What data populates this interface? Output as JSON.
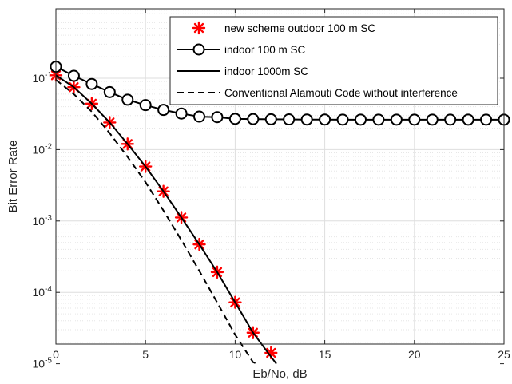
{
  "chart_data": {
    "type": "line",
    "title": "",
    "xlabel": "Eb/No, dB",
    "ylabel": "Bit Error Rate",
    "xlim": [
      0,
      25
    ],
    "ylim": [
      1e-05,
      0.5
    ],
    "yscale": "log",
    "grid": true,
    "minor_grid": true,
    "legend_position": "top-right",
    "x_ticks": [
      {
        "value": 0,
        "label": "0"
      },
      {
        "value": 5,
        "label": "5"
      },
      {
        "value": 10,
        "label": "10"
      },
      {
        "value": 15,
        "label": "15"
      },
      {
        "value": 20,
        "label": "20"
      },
      {
        "value": 25,
        "label": "25"
      }
    ],
    "y_ticks": [
      {
        "value": 0.1,
        "base": "10",
        "exp": "-1"
      },
      {
        "value": 0.01,
        "base": "10",
        "exp": "-2"
      },
      {
        "value": 0.001,
        "base": "10",
        "exp": "-3"
      },
      {
        "value": 0.0001,
        "base": "10",
        "exp": "-4"
      },
      {
        "value": 1e-05,
        "base": "10",
        "exp": "-5"
      }
    ],
    "series": [
      {
        "name": "new scheme outdoor 100 m SC",
        "style": "asterisk-markers",
        "color": "#ff0000",
        "x": [
          0,
          1,
          2,
          3,
          4,
          5,
          6,
          7,
          8,
          9,
          10,
          11,
          12
        ],
        "y": [
          0.11,
          0.075,
          0.044,
          0.024,
          0.012,
          0.0058,
          0.0026,
          0.00112,
          0.00047,
          0.000192,
          7.25e-05,
          2.72e-05,
          1.42e-05
        ]
      },
      {
        "name": "indoor 100 m SC",
        "style": "line-circle-markers",
        "color": "#000000",
        "x": [
          0,
          1,
          2,
          3,
          4,
          5,
          6,
          7,
          8,
          9,
          10,
          11,
          12,
          13,
          14,
          15,
          16,
          17,
          18,
          19,
          20,
          21,
          22,
          23,
          24,
          25
        ],
        "y": [
          0.145,
          0.108,
          0.083,
          0.064,
          0.05,
          0.042,
          0.036,
          0.032,
          0.029,
          0.0285,
          0.027,
          0.0268,
          0.0266,
          0.0265,
          0.0264,
          0.0264,
          0.0263,
          0.0263,
          0.0263,
          0.0263,
          0.0263,
          0.0263,
          0.0263,
          0.0263,
          0.0263,
          0.0263
        ]
      },
      {
        "name": "indoor 1000m SC",
        "style": "solid-line",
        "color": "#000000",
        "x": [
          0,
          1,
          2,
          3,
          4,
          5,
          6,
          7,
          8,
          9,
          10,
          11,
          12,
          12.3
        ],
        "y": [
          0.11,
          0.075,
          0.044,
          0.024,
          0.012,
          0.0058,
          0.0026,
          0.00112,
          0.00047,
          0.000192,
          7.25e-05,
          2.72e-05,
          1.25e-05,
          1e-05
        ]
      },
      {
        "name": "Conventional Alamouti Code without interference",
        "style": "dashed-line",
        "color": "#000000",
        "x": [
          0,
          1,
          2,
          3,
          4,
          5,
          6,
          7,
          8,
          9,
          10,
          11,
          11.2
        ],
        "y": [
          0.095,
          0.06,
          0.034,
          0.017,
          0.0079,
          0.0035,
          0.0014,
          0.00054,
          0.0002,
          7.2e-05,
          2.55e-05,
          1.05e-05,
          1e-05
        ]
      }
    ]
  }
}
